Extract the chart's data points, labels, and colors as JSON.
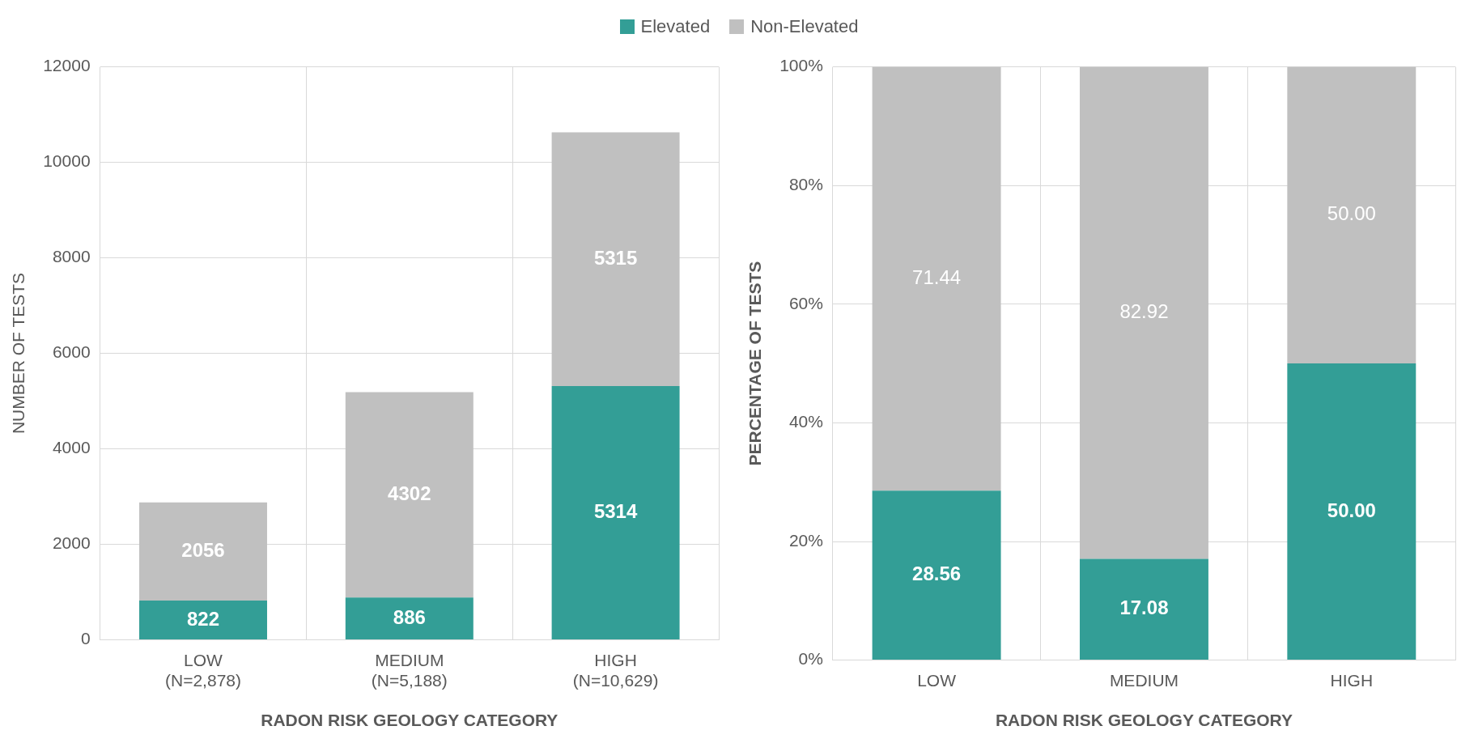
{
  "chart_data": [
    {
      "type": "bar",
      "stacked": true,
      "xlabel": "RADON RISK GEOLOGY CATEGORY",
      "ylabel": "NUMBER OF TESTS",
      "categories": [
        "LOW\n(N=2,878)",
        "MEDIUM\n(N=5,188)",
        "HIGH\n(N=10,629)"
      ],
      "series": [
        {
          "name": "Elevated",
          "color": "#339e96",
          "values": [
            822,
            886,
            5314
          ]
        },
        {
          "name": "Non-Elevated",
          "color": "#c0c0c0",
          "values": [
            2056,
            4302,
            5315
          ]
        }
      ],
      "ylim": [
        0,
        12000
      ],
      "yticks": [
        0,
        2000,
        4000,
        6000,
        8000,
        10000,
        12000
      ],
      "grid": true,
      "legend": "top",
      "data_labels": true
    },
    {
      "type": "bar",
      "stacked": true,
      "xlabel": "RADON RISK GEOLOGY CATEGORY",
      "ylabel": "PERCENTAGE OF TESTS",
      "categories": [
        "LOW",
        "MEDIUM",
        "HIGH"
      ],
      "series": [
        {
          "color": "#339e96",
          "values": [
            28.56,
            17.08,
            50
          ],
          "value_labels": [
            "28.56",
            "17.08",
            "50.00"
          ]
        },
        {
          "color": "#c0c0c0",
          "values": [
            71.44,
            82.92,
            50
          ],
          "value_labels": [
            "71.44",
            "82.92",
            "50.00"
          ]
        }
      ],
      "ylim": [
        0,
        100
      ],
      "yticks": [
        {
          "value": 0,
          "label": "0%"
        },
        {
          "value": 20,
          "label": "20%"
        },
        {
          "value": 40,
          "label": "40%"
        },
        {
          "value": 60,
          "label": "60%"
        },
        {
          "value": 80,
          "label": "80%"
        },
        {
          "value": 100,
          "label": "100%"
        }
      ],
      "grid": true
    }
  ]
}
